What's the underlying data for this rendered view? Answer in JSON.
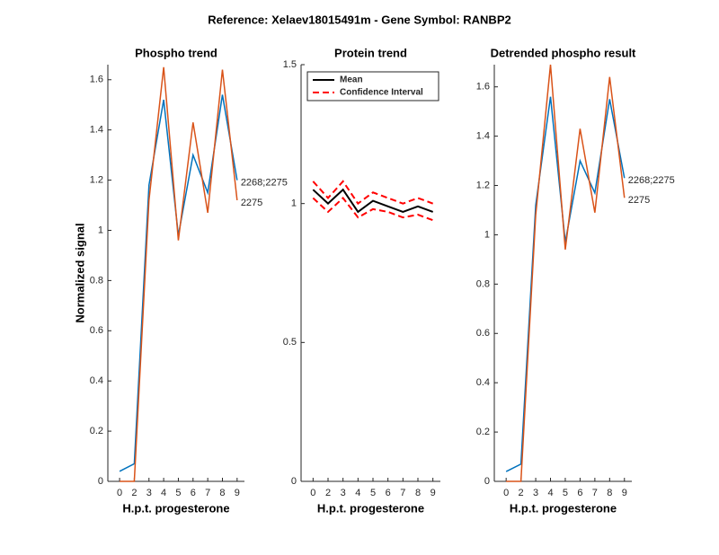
{
  "title": "Reference:  Xelaev18015491m - Gene Symbol:  RANBP2",
  "chart_data": [
    {
      "type": "line",
      "title": "Phospho trend",
      "xlabel": "H.p.t. progesterone",
      "ylabel": "Normalized signal",
      "categories": [
        "0",
        "2",
        "3",
        "4",
        "5",
        "6",
        "7",
        "8",
        "9"
      ],
      "ylim": [
        0,
        1.66
      ],
      "yticks": [
        0,
        0.2,
        0.4,
        0.6,
        0.8,
        1,
        1.2,
        1.4,
        1.6
      ],
      "end_labels": true,
      "series": [
        {
          "name": "2268;2275",
          "color": "#0072bd",
          "values": [
            0.04,
            0.07,
            1.18,
            1.52,
            0.98,
            1.3,
            1.15,
            1.54,
            1.2
          ]
        },
        {
          "name": "2275",
          "color": "#d95319",
          "values": [
            0,
            0,
            1.12,
            1.65,
            0.96,
            1.43,
            1.07,
            1.64,
            1.12
          ]
        }
      ]
    },
    {
      "type": "band-line",
      "title": "Protein trend",
      "xlabel": "H.p.t. progesterone",
      "categories": [
        "0",
        "2",
        "3",
        "4",
        "5",
        "6",
        "7",
        "8",
        "9"
      ],
      "ylim": [
        0,
        1.5
      ],
      "yticks": [
        0,
        0.5,
        1,
        1.5
      ],
      "legend": "upper left",
      "series": [
        {
          "name": "Mean",
          "color": "#000000",
          "values": [
            1.05,
            1.0,
            1.05,
            0.97,
            1.01,
            0.99,
            0.97,
            0.99,
            0.97
          ]
        },
        {
          "name": "Confidence Interval",
          "color": "#ff0000",
          "style": "dashed",
          "upper": [
            1.08,
            1.02,
            1.08,
            1.0,
            1.04,
            1.02,
            1.0,
            1.02,
            1.0
          ],
          "lower": [
            1.02,
            0.97,
            1.02,
            0.95,
            0.98,
            0.97,
            0.95,
            0.96,
            0.94
          ]
        }
      ]
    },
    {
      "type": "line",
      "title": "Detrended phospho result",
      "xlabel": "H.p.t. progesterone",
      "categories": [
        "0",
        "2",
        "3",
        "4",
        "5",
        "6",
        "7",
        "8",
        "9"
      ],
      "ylim": [
        0,
        1.69
      ],
      "yticks": [
        0,
        0.2,
        0.4,
        0.6,
        0.8,
        1,
        1.2,
        1.4,
        1.6
      ],
      "end_labels": true,
      "series": [
        {
          "name": "2268;2275",
          "color": "#0072bd",
          "values": [
            0.04,
            0.07,
            1.12,
            1.56,
            0.97,
            1.3,
            1.17,
            1.55,
            1.23
          ]
        },
        {
          "name": "2275",
          "color": "#d95319",
          "values": [
            0,
            0,
            1.08,
            1.69,
            0.94,
            1.43,
            1.09,
            1.64,
            1.15
          ]
        }
      ]
    }
  ]
}
